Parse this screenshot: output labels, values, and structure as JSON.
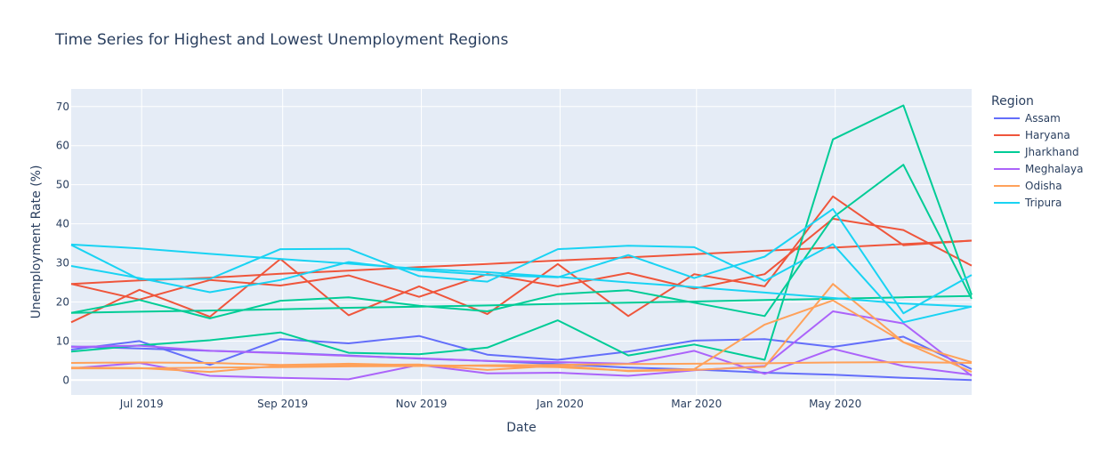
{
  "chart_data": {
    "type": "line",
    "title": "Time Series for Highest and Lowest Unemployment Regions",
    "xlabel": "Date",
    "ylabel": "Unemployment Rate (%)",
    "x_tick_labels": [
      "Jul 2019",
      "Sep 2019",
      "Nov 2019",
      "Jan 2020",
      "Mar 2020",
      "May 2020"
    ],
    "x_tick_dates": [
      "2019-07-01",
      "2019-09-01",
      "2019-11-01",
      "2020-01-01",
      "2020-03-01",
      "2020-05-01"
    ],
    "x_range": [
      "2019-05-31",
      "2020-06-30"
    ],
    "y_ticks": [
      0,
      10,
      20,
      30,
      40,
      50,
      60,
      70
    ],
    "ylim": [
      -3.8,
      74.5
    ],
    "grid": true,
    "legend_title": "Region",
    "legend_position": "right",
    "dates": [
      "2019-05-31",
      "2019-06-30",
      "2019-07-31",
      "2019-08-31",
      "2019-09-30",
      "2019-10-31",
      "2019-11-30",
      "2019-12-31",
      "2020-01-31",
      "2020-02-29",
      "2020-03-31",
      "2020-04-30",
      "2020-05-31",
      "2020-06-30"
    ],
    "series": [
      {
        "name": "Assam",
        "color": "#636efa",
        "lines": [
          [
            7.8,
            10.0,
            3.9,
            10.5,
            9.4,
            11.3,
            6.5,
            5.2,
            7.3,
            10.1,
            10.5,
            8.5,
            11.1,
            2.8
          ],
          [
            8.6,
            8.1,
            7.5,
            7.0,
            6.3,
            5.5,
            4.9,
            4.1,
            3.2,
            2.7,
            1.9,
            1.4,
            0.6,
            0.0
          ]
        ]
      },
      {
        "name": "Haryana",
        "color": "#ef553b",
        "lines": [
          [
            14.8,
            23.1,
            16.2,
            31.0,
            16.6,
            24.0,
            16.9,
            29.7,
            16.4,
            27.1,
            24.0,
            47.0,
            34.5,
            35.7
          ],
          [
            24.6,
            20.6,
            25.6,
            24.2,
            26.8,
            21.3,
            27.1,
            24.0,
            27.4,
            23.4,
            27.1,
            41.3,
            38.4,
            29.3
          ],
          [
            24.6,
            25.5,
            26.2,
            27.2,
            28.0,
            28.9,
            29.7,
            30.6,
            31.4,
            32.2,
            33.1,
            33.9,
            34.8,
            35.7
          ]
        ]
      },
      {
        "name": "Jharkhand",
        "color": "#00cc96",
        "lines": [
          [
            7.3,
            8.9,
            10.2,
            12.2,
            7.0,
            6.6,
            8.3,
            15.3,
            6.3,
            9.1,
            5.2,
            61.6,
            70.3,
            21.8
          ],
          [
            17.2,
            20.5,
            15.8,
            20.3,
            21.2,
            19.0,
            17.6,
            22.0,
            23.0,
            19.8,
            16.4,
            41.6,
            55.1,
            20.8
          ],
          [
            17.2,
            17.5,
            17.8,
            18.1,
            18.5,
            18.8,
            19.1,
            19.5,
            19.8,
            20.1,
            20.5,
            20.8,
            21.2,
            21.5
          ]
        ]
      },
      {
        "name": "Meghalaya",
        "color": "#ab63fa",
        "lines": [
          [
            3.0,
            4.4,
            1.1,
            0.6,
            0.2,
            3.9,
            1.7,
            1.9,
            1.1,
            2.5,
            3.6,
            17.6,
            14.5,
            1.1
          ],
          [
            8.5,
            8.8,
            7.5,
            6.9,
            6.2,
            5.6,
            4.9,
            4.6,
            4.2,
            7.5,
            1.6,
            8.0,
            3.6,
            1.4
          ]
        ]
      },
      {
        "name": "Odisha",
        "color": "#ffa15a",
        "lines": [
          [
            3.2,
            3.1,
            2.1,
            3.7,
            3.9,
            4.0,
            2.6,
            3.7,
            2.3,
            2.6,
            3.4,
            24.6,
            9.7,
            2.1
          ],
          [
            3.0,
            3.0,
            3.2,
            3.3,
            3.5,
            3.6,
            3.8,
            3.9,
            4.1,
            4.2,
            4.3,
            4.5,
            4.6,
            4.4
          ],
          [
            4.4,
            4.5,
            4.4,
            3.9,
            4.2,
            3.8,
            3.6,
            3.3,
            2.4,
            2.8,
            14.2,
            20.4,
            9.7,
            4.6
          ]
        ]
      },
      {
        "name": "Tripura",
        "color": "#19d3f3",
        "lines": [
          [
            34.7,
            33.7,
            32.3,
            31.0,
            29.8,
            28.5,
            27.6,
            26.4,
            25.0,
            23.8,
            22.4,
            21.0,
            19.6,
            18.8
          ],
          [
            29.2,
            26.1,
            22.5,
            25.6,
            30.2,
            28.1,
            26.9,
            26.3,
            32.0,
            26.1,
            31.6,
            43.8,
            17.1,
            26.9
          ],
          [
            34.6,
            25.8,
            25.9,
            33.5,
            33.6,
            26.6,
            25.2,
            33.5,
            34.4,
            34.0,
            25.4,
            34.8,
            14.8,
            18.8
          ]
        ]
      }
    ]
  }
}
